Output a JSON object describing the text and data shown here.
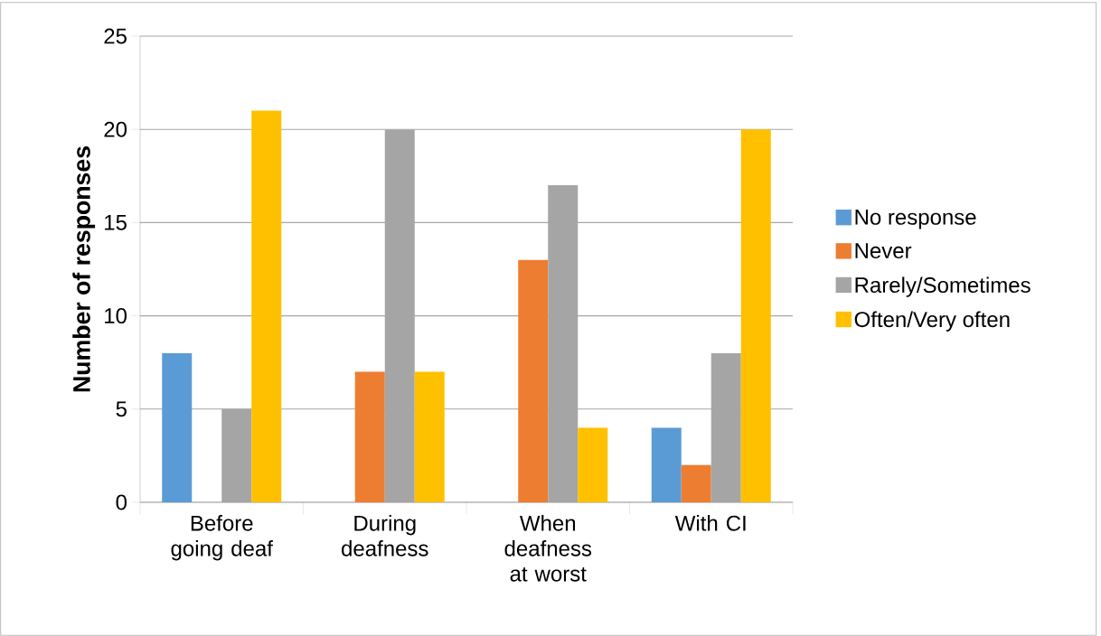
{
  "chart_data": {
    "type": "bar",
    "ylabel": "Number of responses",
    "categories": [
      "Before going deaf",
      "During deafness",
      "When deafness at worst",
      "With CI"
    ],
    "series": [
      {
        "name": "No response",
        "color": "#5b9bd5",
        "values": [
          8,
          0,
          0,
          4
        ]
      },
      {
        "name": "Never",
        "color": "#ed7d31",
        "values": [
          0,
          7,
          13,
          2
        ]
      },
      {
        "name": "Rarely/Sometimes",
        "color": "#a5a5a5",
        "values": [
          5,
          20,
          17,
          8
        ]
      },
      {
        "name": "Often/Very often",
        "color": "#ffc000",
        "values": [
          21,
          7,
          4,
          20
        ]
      }
    ],
    "ylim": [
      0,
      25
    ],
    "yticks": [
      0,
      5,
      10,
      15,
      20,
      25
    ],
    "grid": "y",
    "legend": "right"
  }
}
